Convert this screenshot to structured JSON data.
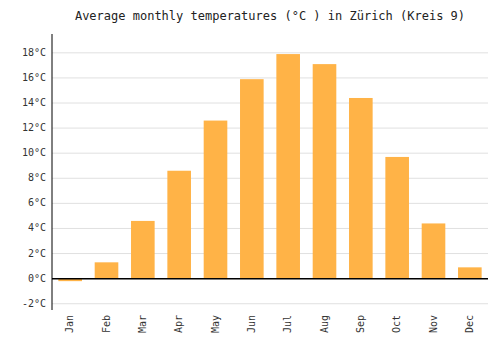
{
  "chart_data": {
    "type": "bar",
    "title": "Average monthly temperatures (°C ) in Zürich (Kreis 9)",
    "categories": [
      "Jan",
      "Feb",
      "Mar",
      "Apr",
      "May",
      "Jun",
      "Jul",
      "Aug",
      "Sep",
      "Oct",
      "Nov",
      "Dec"
    ],
    "values": [
      -0.2,
      1.3,
      4.6,
      8.6,
      12.6,
      15.9,
      17.9,
      17.1,
      14.4,
      9.7,
      4.4,
      0.9
    ],
    "color": "#FFB347",
    "ylim": [
      -2.5,
      19.5
    ],
    "yticks": [
      {
        "value": -2,
        "label": "-2°C"
      },
      {
        "value": 0,
        "label": "0°C"
      },
      {
        "value": 2,
        "label": "2°C"
      },
      {
        "value": 4,
        "label": "4°C"
      },
      {
        "value": 6,
        "label": "6°C"
      },
      {
        "value": 8,
        "label": "8°C"
      },
      {
        "value": 10,
        "label": "10°C"
      },
      {
        "value": 12,
        "label": "12°C"
      },
      {
        "value": 14,
        "label": "14°C"
      },
      {
        "value": 16,
        "label": "16°C"
      },
      {
        "value": 18,
        "label": "18°C"
      }
    ],
    "grid": true
  }
}
